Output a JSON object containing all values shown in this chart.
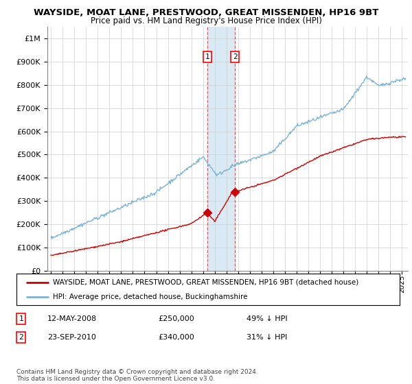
{
  "title": "WAYSIDE, MOAT LANE, PRESTWOOD, GREAT MISSENDEN, HP16 9BT",
  "subtitle": "Price paid vs. HM Land Registry's House Price Index (HPI)",
  "ytick_values": [
    0,
    100000,
    200000,
    300000,
    400000,
    500000,
    600000,
    700000,
    800000,
    900000,
    1000000
  ],
  "ylim": [
    0,
    1050000
  ],
  "xlim_start": 1994.7,
  "xlim_end": 2025.5,
  "hpi_color": "#7ab3d4",
  "price_color": "#cc0000",
  "transaction1_date": 2008.36,
  "transaction1_price": 250000,
  "transaction2_date": 2010.72,
  "transaction2_price": 340000,
  "legend_label_red": "WAYSIDE, MOAT LANE, PRESTWOOD, GREAT MISSENDEN, HP16 9BT (detached house)",
  "legend_label_blue": "HPI: Average price, detached house, Buckinghamshire",
  "table_row1": [
    "1",
    "12-MAY-2008",
    "£250,000",
    "49% ↓ HPI"
  ],
  "table_row2": [
    "2",
    "23-SEP-2010",
    "£340,000",
    "31% ↓ HPI"
  ],
  "footnote": "Contains HM Land Registry data © Crown copyright and database right 2024.\nThis data is licensed under the Open Government Licence v3.0.",
  "highlight_xmin": 2008.36,
  "highlight_xmax": 2010.72,
  "highlight_color": "#daeaf5"
}
